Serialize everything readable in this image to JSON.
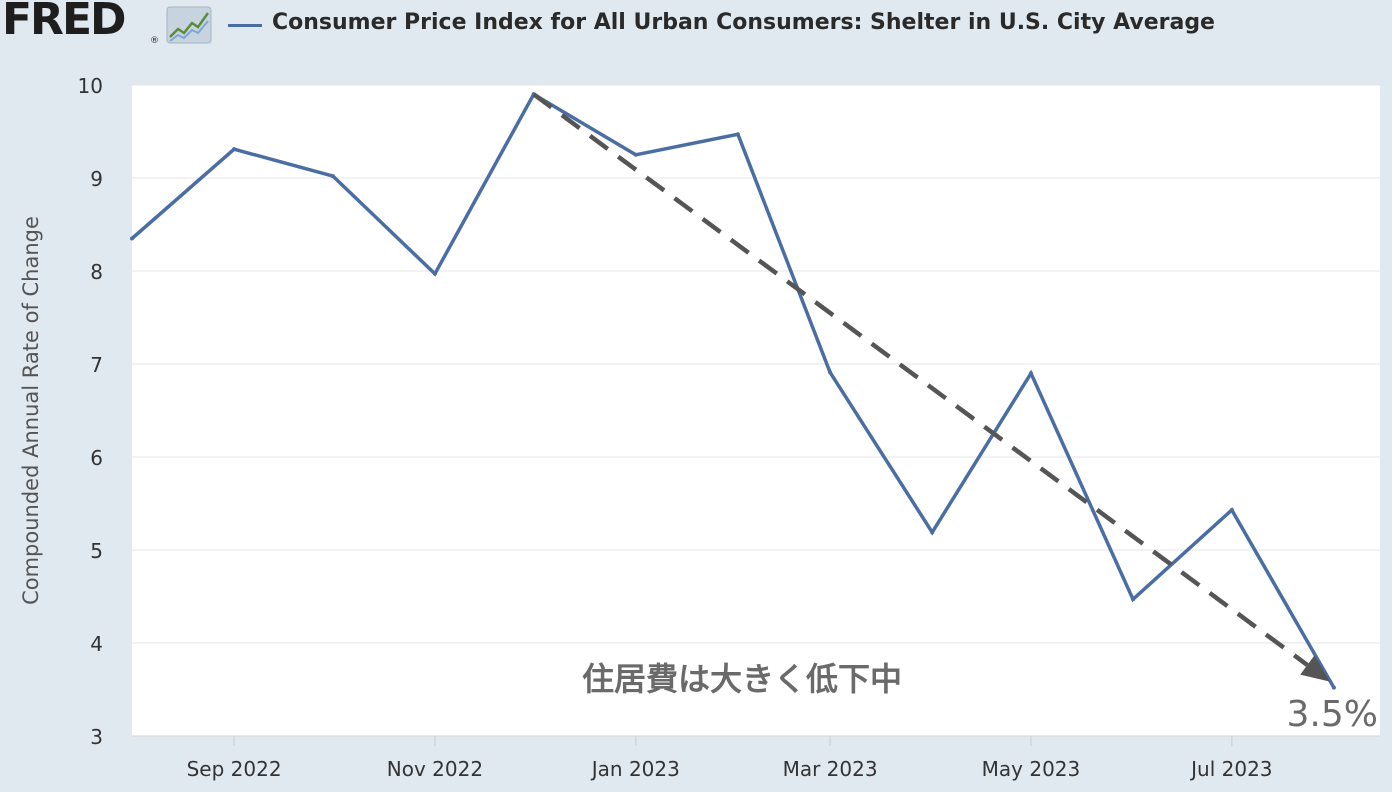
{
  "header": {
    "logo": "FRED",
    "logo_reg": "®",
    "chart_icon": "line-chart-icon"
  },
  "chart_data": {
    "type": "line",
    "title": "Consumer Price Index for All Urban Consumers: Shelter in U.S. City Average",
    "ylabel": "Compounded Annual Rate of Change",
    "xlabel": "",
    "ylim": [
      3,
      10
    ],
    "yticks": [
      3,
      4,
      5,
      6,
      7,
      8,
      9,
      10
    ],
    "xlim": [
      "2022-08-01",
      "2023-08-15"
    ],
    "xtick_labels": [
      {
        "date": "2022-09-01",
        "label": "Sep 2022"
      },
      {
        "date": "2022-11-01",
        "label": "Nov 2022"
      },
      {
        "date": "2023-01-01",
        "label": "Jan 2023"
      },
      {
        "date": "2023-03-01",
        "label": "Mar 2023"
      },
      {
        "date": "2023-05-01",
        "label": "May 2023"
      },
      {
        "date": "2023-07-01",
        "label": "Jul 2023"
      }
    ],
    "grid": true,
    "series": [
      {
        "name": "Consumer Price Index for All Urban Consumers: Shelter in U.S. City Average",
        "color": "#4a6ea4",
        "x": [
          "2022-08-01",
          "2022-09-01",
          "2022-10-01",
          "2022-11-01",
          "2022-12-01",
          "2023-01-01",
          "2023-02-01",
          "2023-03-01",
          "2023-04-01",
          "2023-05-01",
          "2023-06-01",
          "2023-07-01",
          "2023-08-01"
        ],
        "values": [
          8.35,
          9.31,
          9.02,
          7.97,
          9.9,
          9.25,
          9.47,
          6.91,
          5.19,
          6.9,
          4.47,
          5.43,
          3.52
        ]
      }
    ],
    "annotations": {
      "trend_arrow": {
        "from": [
          "2022-12-01",
          9.9
        ],
        "to": [
          "2023-08-01",
          3.52
        ],
        "color": "#555555",
        "style": "dashed"
      },
      "note": "住居費は大きく低下中",
      "value_label": "3.5%"
    }
  }
}
